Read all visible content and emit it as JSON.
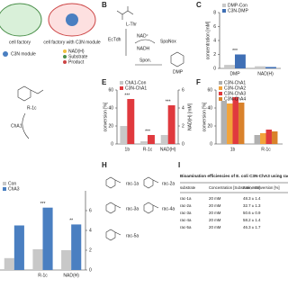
{
  "panels": {
    "A": {
      "texts": [
        "cell factory",
        "cell factory with C3N module",
        "NAD(H)",
        "Substrate",
        "Product",
        "C3N module"
      ]
    },
    "B": {
      "label": "B",
      "texts": [
        "L-Thr",
        "EcTdh",
        "NAD⁺",
        "NADH",
        "SpaNox",
        "Spon.",
        "DMP"
      ]
    },
    "C": {
      "label": "C"
    },
    "D": {
      "texts": [
        "R-1c",
        "ChA1"
      ]
    },
    "E": {
      "label": "E"
    },
    "F": {
      "label": "F"
    },
    "H": {
      "label": "H",
      "texts": [
        "rac-1a",
        "rac-2a",
        "rac-3a",
        "rac-4a",
        "rac-5a"
      ]
    },
    "I": {
      "label": "I"
    }
  },
  "chart_data": [
    {
      "type": "bar",
      "ylabel": "concentration [mM]",
      "categories": [
        "DMP",
        "NAD(H)"
      ],
      "series": [
        {
          "name": "DMP-Con",
          "color": "#c8c8c8",
          "values": [
            0.5,
            0.3
          ]
        },
        {
          "name": "C3N-DMP",
          "color": "#3f6fb5",
          "values": [
            2.0,
            0.2
          ]
        }
      ],
      "significance": [
        "***",
        null
      ],
      "ylim": [
        0,
        8
      ],
      "yticks": [
        0,
        2,
        4,
        6,
        8
      ],
      "legend": "top-left"
    },
    {
      "type": "bar",
      "ylabel": "conversion [%]",
      "y2label": "NAD(H) [mM]",
      "categories": [
        "1b",
        "R-1c",
        "NAD(H)"
      ],
      "category_axes": [
        "y",
        "y",
        "y2"
      ],
      "series": [
        {
          "name": "ChA1-Con",
          "color": "#c8c8c8",
          "values": [
            20,
            3,
            1.0
          ]
        },
        {
          "name": "C3N-ChA1",
          "color": "#e0393e",
          "values": [
            50,
            10,
            4.3
          ]
        }
      ],
      "significance": [
        "***",
        "***",
        "***"
      ],
      "ylim": [
        0,
        60
      ],
      "yticks": [
        0,
        20,
        40,
        60
      ],
      "y2lim": [
        0,
        6
      ],
      "y2ticks": [
        0,
        2,
        4,
        6
      ],
      "legend": "top-left"
    },
    {
      "type": "bar",
      "ylabel": "conversion [%]",
      "categories": [
        "1b",
        "R-1c"
      ],
      "series": [
        {
          "name": "C3N-ChA1",
          "color": "#b0b0b0",
          "values": [
            48,
            10
          ]
        },
        {
          "name": "C3N-ChA2",
          "color": "#f2a33a",
          "values": [
            45,
            12
          ]
        },
        {
          "name": "C3N-ChA3",
          "color": "#e0393e",
          "values": [
            52,
            16
          ]
        },
        {
          "name": "C3N-ChA4",
          "color": "#d9822b",
          "values": [
            46,
            14
          ]
        }
      ],
      "ylim": [
        0,
        60
      ],
      "yticks": [
        0,
        20,
        40,
        60
      ],
      "legend": "top-left"
    },
    {
      "type": "bar",
      "categories": [
        null,
        "R-1c",
        "NAD(H)"
      ],
      "series": [
        {
          "name": "Con",
          "color": "#c8c8c8",
          "axis": "y2",
          "values": [
            1.2,
            2.1,
            2.0
          ]
        },
        {
          "name": "ChA3",
          "color": "#4a7fc1",
          "axis": "y2",
          "values": [
            4.5,
            6.3,
            4.6
          ]
        }
      ],
      "significance": [
        null,
        "***",
        "**"
      ],
      "y2lim": [
        0,
        8
      ],
      "y2ticks": [
        0,
        2,
        4,
        6
      ],
      "legend": "top-left"
    }
  ],
  "table": {
    "title": "Bioamination efficiencies of E. coli C3N-ChA3 using rac-alcohols as substrates",
    "header": [
      "substrate",
      "Concentration [Substrate, mM]",
      "Amine conversion [%]"
    ],
    "rows": [
      [
        "rac-1a",
        "20 mM",
        "48.3 ± 1.4"
      ],
      [
        "rac-2a",
        "20 mM",
        "32.7 ± 1.3"
      ],
      [
        "rac-3a",
        "20 mM",
        "50.6 ± 0.9"
      ],
      [
        "rac-4a",
        "20 mM",
        "58.2 ± 1.4"
      ],
      [
        "rac-5a",
        "20 mM",
        "46.3 ± 1.7"
      ]
    ]
  }
}
